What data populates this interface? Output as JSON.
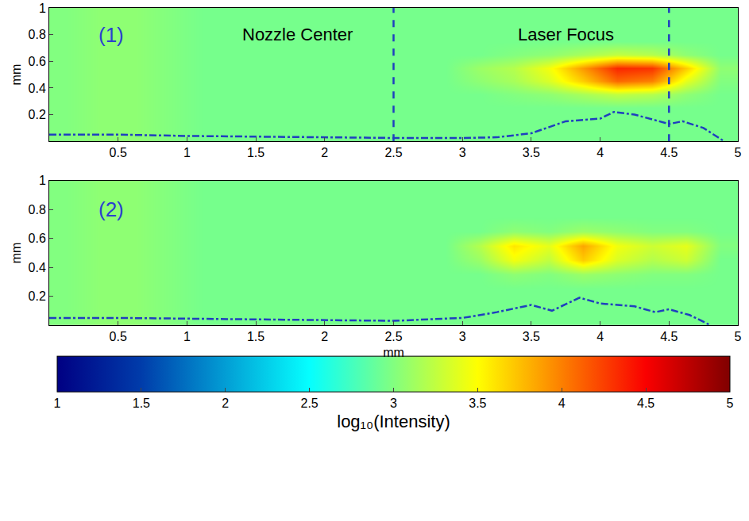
{
  "chart_data": [
    {
      "type": "heatmap",
      "x": [
        0.125,
        0.375,
        0.625,
        0.875,
        1.125,
        1.375,
        1.625,
        1.875,
        2.125,
        2.375,
        2.625,
        2.875,
        3.125,
        3.375,
        3.625,
        3.875,
        4.125,
        4.375,
        4.625,
        4.875
      ],
      "y": [
        0.05,
        0.15,
        0.25,
        0.35,
        0.45,
        0.55,
        0.65,
        0.75,
        0.85,
        0.95
      ],
      "z": [
        [
          3.0,
          3.05,
          3.05,
          3.0,
          2.95,
          2.95,
          2.95,
          2.95,
          2.95,
          2.95,
          2.95,
          2.95,
          2.95,
          2.95,
          2.95,
          2.95,
          2.95,
          2.95,
          2.95,
          2.95
        ],
        [
          3.0,
          3.05,
          3.05,
          3.0,
          2.95,
          2.95,
          2.95,
          2.95,
          2.95,
          2.95,
          2.95,
          2.95,
          2.95,
          2.95,
          2.95,
          2.95,
          2.95,
          2.95,
          2.95,
          2.95
        ],
        [
          3.0,
          3.05,
          3.05,
          3.0,
          2.95,
          2.95,
          2.95,
          2.95,
          2.95,
          2.95,
          2.95,
          2.95,
          2.95,
          2.95,
          2.95,
          2.95,
          2.95,
          2.95,
          2.95,
          2.95
        ],
        [
          3.0,
          3.05,
          3.05,
          3.0,
          2.95,
          2.95,
          2.95,
          2.95,
          2.95,
          2.95,
          2.95,
          2.95,
          2.95,
          3.0,
          3.05,
          3.15,
          3.25,
          3.2,
          3.05,
          2.95
        ],
        [
          3.0,
          3.05,
          3.05,
          3.0,
          2.95,
          2.95,
          2.95,
          2.95,
          2.95,
          2.95,
          2.95,
          2.95,
          3.05,
          3.15,
          3.35,
          3.7,
          4.1,
          4.0,
          3.4,
          3.0
        ],
        [
          3.0,
          3.05,
          3.05,
          3.0,
          2.95,
          2.95,
          2.95,
          2.95,
          2.95,
          2.95,
          2.95,
          2.95,
          3.1,
          3.2,
          3.45,
          3.9,
          4.35,
          4.3,
          3.7,
          3.05
        ],
        [
          3.0,
          3.05,
          3.05,
          3.0,
          2.95,
          2.95,
          2.95,
          2.95,
          2.95,
          2.95,
          2.95,
          2.95,
          2.95,
          3.0,
          3.05,
          3.15,
          3.25,
          3.2,
          3.05,
          2.95
        ],
        [
          3.0,
          3.05,
          3.05,
          3.0,
          2.95,
          2.95,
          2.95,
          2.95,
          2.95,
          2.95,
          2.95,
          2.95,
          2.95,
          2.95,
          2.95,
          2.95,
          2.95,
          2.95,
          2.95,
          2.95
        ],
        [
          3.0,
          3.05,
          3.05,
          3.0,
          2.95,
          2.95,
          2.95,
          2.95,
          2.95,
          2.95,
          2.95,
          2.95,
          2.95,
          2.95,
          2.95,
          2.95,
          2.95,
          2.95,
          2.95,
          2.95
        ],
        [
          3.0,
          3.05,
          3.05,
          3.0,
          2.95,
          2.95,
          2.95,
          2.95,
          2.95,
          2.95,
          2.95,
          2.95,
          2.95,
          2.95,
          2.95,
          2.95,
          2.95,
          2.95,
          2.95,
          2.95
        ]
      ],
      "xlim": [
        0,
        5
      ],
      "xticks": [
        0.5,
        1,
        1.5,
        2,
        2.5,
        3,
        3.5,
        4,
        4.5,
        5
      ],
      "ylim": [
        0,
        1
      ],
      "yticks": [
        0.2,
        0.4,
        0.6,
        0.8,
        1
      ],
      "ylabel": "mm",
      "annotations": [
        {
          "text": "(1)",
          "x": 0.45,
          "y": 0.8,
          "color": "#2a3fd0"
        },
        {
          "text": "Nozzle Center",
          "x": 1.8,
          "y": 0.8,
          "color": "#000000"
        },
        {
          "text": "Laser Focus",
          "x": 3.75,
          "y": 0.8,
          "color": "#000000"
        }
      ],
      "vlines": [
        2.5,
        4.5
      ],
      "profile": {
        "type": "line",
        "line_style": "dashdot",
        "color": "#1f3fbf",
        "x": [
          0,
          0.5,
          1,
          1.5,
          2,
          2.5,
          3,
          3.25,
          3.5,
          3.75,
          4,
          4.1,
          4.25,
          4.5,
          4.6,
          4.75,
          4.9
        ],
        "values": [
          0.05,
          0.05,
          0.04,
          0.035,
          0.03,
          0.025,
          0.025,
          0.03,
          0.06,
          0.15,
          0.17,
          0.22,
          0.2,
          0.13,
          0.15,
          0.1,
          0.0
        ]
      }
    },
    {
      "type": "heatmap",
      "x": [
        0.125,
        0.375,
        0.625,
        0.875,
        1.125,
        1.375,
        1.625,
        1.875,
        2.125,
        2.375,
        2.625,
        2.875,
        3.125,
        3.375,
        3.625,
        3.875,
        4.125,
        4.375,
        4.625,
        4.875
      ],
      "y": [
        0.05,
        0.15,
        0.25,
        0.35,
        0.45,
        0.55,
        0.65,
        0.75,
        0.85,
        0.95
      ],
      "z": [
        [
          3.0,
          3.05,
          3.05,
          3.0,
          2.95,
          2.95,
          2.95,
          2.95,
          2.95,
          2.95,
          2.95,
          2.95,
          2.95,
          2.95,
          2.95,
          2.95,
          2.95,
          2.95,
          2.95,
          2.95
        ],
        [
          3.0,
          3.05,
          3.05,
          3.0,
          2.95,
          2.95,
          2.95,
          2.95,
          2.95,
          2.95,
          2.95,
          2.95,
          2.95,
          2.95,
          2.95,
          2.95,
          2.95,
          2.95,
          2.95,
          2.95
        ],
        [
          3.0,
          3.05,
          3.05,
          3.0,
          2.95,
          2.95,
          2.95,
          2.95,
          2.95,
          2.95,
          2.95,
          2.95,
          2.95,
          2.95,
          2.95,
          2.95,
          2.95,
          2.95,
          2.95,
          2.95
        ],
        [
          3.0,
          3.05,
          3.05,
          3.0,
          2.95,
          2.95,
          2.95,
          2.95,
          2.95,
          2.95,
          2.95,
          2.95,
          2.95,
          3.05,
          3.0,
          3.1,
          3.05,
          3.0,
          3.0,
          2.95
        ],
        [
          3.0,
          3.05,
          3.05,
          3.0,
          2.95,
          2.95,
          2.95,
          2.95,
          2.95,
          2.95,
          2.95,
          2.95,
          3.1,
          3.45,
          3.25,
          3.7,
          3.35,
          3.2,
          3.3,
          2.95
        ],
        [
          3.0,
          3.05,
          3.05,
          3.0,
          2.95,
          2.95,
          2.95,
          2.95,
          2.95,
          2.95,
          2.95,
          2.95,
          3.2,
          3.6,
          3.4,
          3.85,
          3.45,
          3.3,
          3.4,
          3.0
        ],
        [
          3.0,
          3.05,
          3.05,
          3.0,
          2.95,
          2.95,
          2.95,
          2.95,
          2.95,
          2.95,
          2.95,
          2.95,
          2.95,
          3.05,
          3.0,
          3.1,
          3.05,
          3.0,
          3.0,
          2.95
        ],
        [
          3.0,
          3.05,
          3.05,
          3.0,
          2.95,
          2.95,
          2.95,
          2.95,
          2.95,
          2.95,
          2.95,
          2.95,
          2.95,
          2.95,
          2.95,
          2.95,
          2.95,
          2.95,
          2.95,
          2.95
        ],
        [
          3.0,
          3.05,
          3.05,
          3.0,
          2.95,
          2.95,
          2.95,
          2.95,
          2.95,
          2.95,
          2.95,
          2.95,
          2.95,
          2.95,
          2.95,
          2.95,
          2.95,
          2.95,
          2.95,
          2.95
        ],
        [
          3.0,
          3.05,
          3.05,
          3.0,
          2.95,
          2.95,
          2.95,
          2.95,
          2.95,
          2.95,
          2.95,
          2.95,
          2.95,
          2.95,
          2.95,
          2.95,
          2.95,
          2.95,
          2.95,
          2.95
        ]
      ],
      "xlim": [
        0,
        5
      ],
      "xticks": [
        0.5,
        1,
        1.5,
        2,
        2.5,
        3,
        3.5,
        4,
        4.5,
        5
      ],
      "ylim": [
        0,
        1
      ],
      "yticks": [
        0.2,
        0.4,
        0.6,
        0.8,
        1
      ],
      "xlabel": "mm",
      "ylabel": "mm",
      "annotations": [
        {
          "text": "(2)",
          "x": 0.45,
          "y": 0.8,
          "color": "#2a3fd0"
        }
      ],
      "profile": {
        "type": "line",
        "line_style": "dashdot",
        "color": "#1f3fbf",
        "x": [
          0,
          0.5,
          1,
          1.5,
          2,
          2.5,
          3,
          3.25,
          3.5,
          3.65,
          3.85,
          4,
          4.25,
          4.4,
          4.5,
          4.65,
          4.8
        ],
        "values": [
          0.05,
          0.05,
          0.045,
          0.04,
          0.035,
          0.03,
          0.05,
          0.09,
          0.14,
          0.1,
          0.19,
          0.15,
          0.13,
          0.09,
          0.11,
          0.07,
          0.0
        ]
      },
      "colorbar": {
        "range": [
          1,
          5
        ],
        "ticks": [
          1,
          1.5,
          2,
          2.5,
          3,
          3.5,
          4,
          4.5,
          5
        ],
        "title": "log₁₀(Intensity)"
      }
    }
  ]
}
